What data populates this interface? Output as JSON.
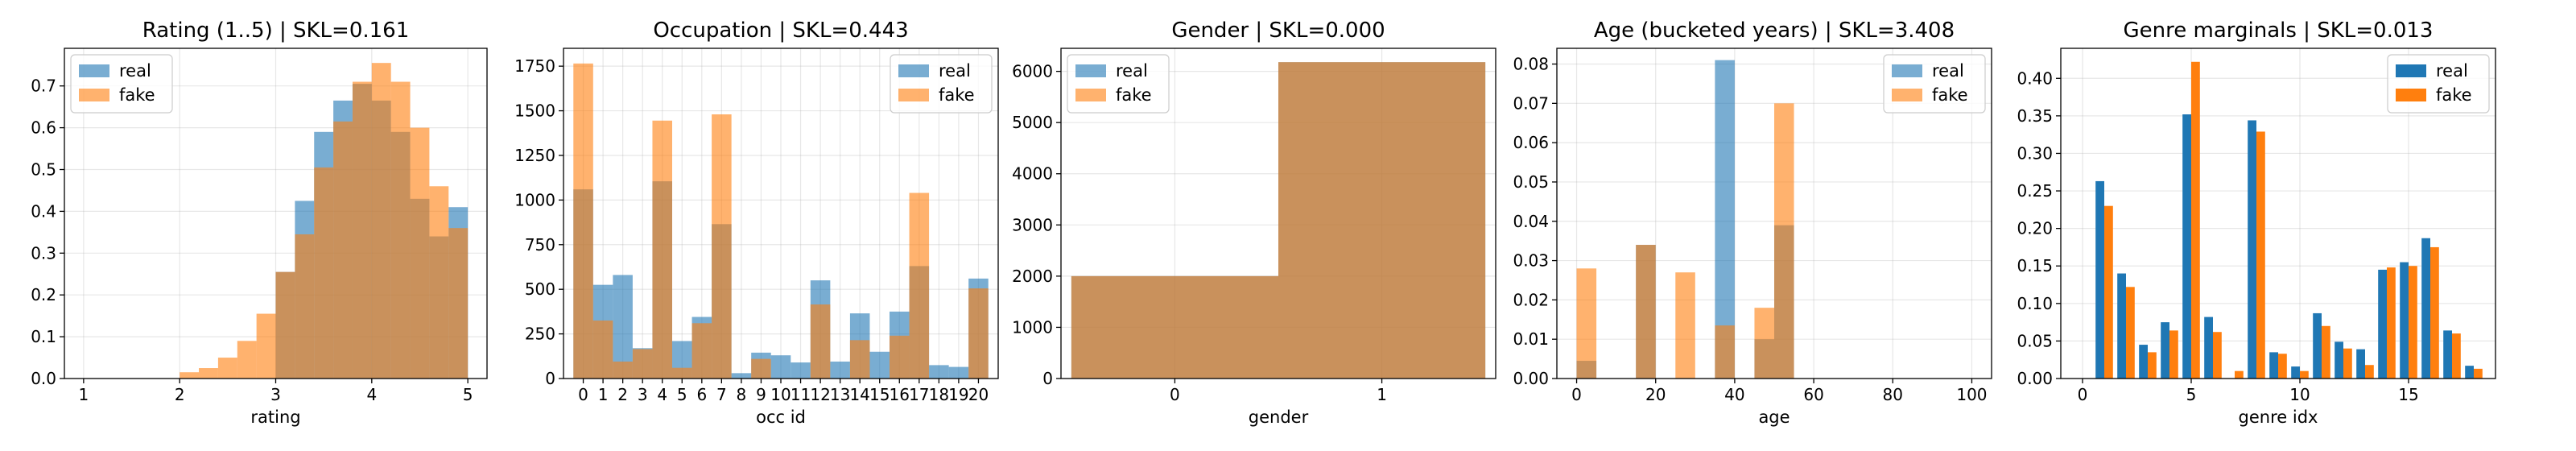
{
  "chart_data": [
    {
      "id": "rating",
      "type": "histogram",
      "title": "Rating (1..5) | SKL=0.161",
      "xlabel": "rating",
      "ylabel": "",
      "xlim": [
        0.8,
        5.2
      ],
      "ylim": [
        0,
        0.79
      ],
      "xticks": [
        1,
        2,
        3,
        4,
        5
      ],
      "yticks": [
        0.0,
        0.1,
        0.2,
        0.3,
        0.4,
        0.5,
        0.6,
        0.7
      ],
      "tick_decimals": 1,
      "grid": true,
      "legend": "upper left",
      "colors": {
        "real": "#1f77b4",
        "fake": "#ff7f0e"
      },
      "alpha": 0.6,
      "bins": [
        2.0,
        2.2,
        2.4,
        2.6,
        2.8,
        3.0,
        3.2,
        3.4,
        3.6,
        3.8,
        4.0,
        4.2,
        4.4,
        4.6,
        4.8,
        5.0
      ],
      "series": [
        {
          "name": "real",
          "values": [
            0.0,
            0.0,
            0.0,
            0.0,
            0.0,
            0.255,
            0.425,
            0.59,
            0.665,
            0.705,
            0.665,
            0.59,
            0.43,
            0.34,
            0.41
          ]
        },
        {
          "name": "fake",
          "values": [
            0.015,
            0.025,
            0.05,
            0.09,
            0.155,
            0.255,
            0.345,
            0.505,
            0.615,
            0.71,
            0.755,
            0.71,
            0.6,
            0.46,
            0.36
          ]
        }
      ]
    },
    {
      "id": "occupation",
      "type": "histogram",
      "title": "Occupation | SKL=0.443",
      "xlabel": "occ id",
      "ylabel": "",
      "xlim": [
        -1.0,
        21.0
      ],
      "ylim": [
        0,
        1850
      ],
      "xticks": [
        0,
        1,
        2,
        3,
        4,
        5,
        6,
        7,
        8,
        9,
        10,
        11,
        12,
        13,
        14,
        15,
        16,
        17,
        18,
        19,
        20
      ],
      "yticks": [
        0,
        250,
        500,
        750,
        1000,
        1250,
        1500,
        1750
      ],
      "tick_decimals": 0,
      "grid": true,
      "legend": "upper right",
      "colors": {
        "real": "#1f77b4",
        "fake": "#ff7f0e"
      },
      "alpha": 0.6,
      "bins": [
        -0.5,
        0.5,
        1.5,
        2.5,
        3.5,
        4.5,
        5.5,
        6.5,
        7.5,
        8.5,
        9.5,
        10.5,
        11.5,
        12.5,
        13.5,
        14.5,
        15.5,
        16.5,
        17.5,
        18.5,
        19.5,
        20.5
      ],
      "series": [
        {
          "name": "real",
          "values": [
            1060,
            525,
            580,
            170,
            1105,
            210,
            345,
            865,
            30,
            145,
            130,
            90,
            550,
            95,
            365,
            150,
            375,
            630,
            75,
            65,
            560
          ]
        },
        {
          "name": "fake",
          "values": [
            1765,
            325,
            95,
            165,
            1445,
            60,
            310,
            1480,
            0,
            110,
            0,
            0,
            415,
            0,
            215,
            0,
            240,
            1040,
            0,
            0,
            505
          ]
        }
      ]
    },
    {
      "id": "gender",
      "type": "histogram",
      "title": "Gender | SKL=0.000",
      "xlabel": "gender",
      "ylabel": "",
      "xlim": [
        -0.55,
        1.55
      ],
      "ylim": [
        0,
        6450
      ],
      "xticks": [
        0,
        1
      ],
      "yticks": [
        0,
        1000,
        2000,
        3000,
        4000,
        5000,
        6000
      ],
      "tick_decimals": 0,
      "grid": true,
      "legend": "upper left",
      "colors": {
        "real": "#1f77b4",
        "fake": "#ff7f0e"
      },
      "alpha": 0.6,
      "bins": [
        -0.5,
        0.5,
        1.5
      ],
      "series": [
        {
          "name": "real",
          "values": [
            2000,
            6180
          ]
        },
        {
          "name": "fake",
          "values": [
            2000,
            6180
          ]
        }
      ]
    },
    {
      "id": "age",
      "type": "histogram",
      "title": "Age (bucketed years) | SKL=3.408",
      "xlabel": "age",
      "ylabel": "",
      "xlim": [
        -5,
        105
      ],
      "ylim": [
        0,
        0.084
      ],
      "xticks": [
        0,
        20,
        40,
        60,
        80,
        100
      ],
      "yticks": [
        0.0,
        0.01,
        0.02,
        0.03,
        0.04,
        0.05,
        0.06,
        0.07,
        0.08
      ],
      "tick_decimals": 2,
      "grid": true,
      "legend": "upper right",
      "colors": {
        "real": "#1f77b4",
        "fake": "#ff7f0e"
      },
      "alpha": 0.6,
      "bins": [
        0,
        5,
        10,
        15,
        20,
        25,
        30,
        35,
        40,
        45,
        50,
        55,
        60
      ],
      "series": [
        {
          "name": "real",
          "values": [
            0.0045,
            0.0,
            0.0,
            0.034,
            0.0,
            0.0,
            0.0,
            0.081,
            0.0,
            0.01,
            0.039,
            0.0
          ]
        },
        {
          "name": "fake",
          "values": [
            0.028,
            0.0,
            0.0,
            0.034,
            0.0,
            0.027,
            0.0,
            0.0135,
            0.0,
            0.018,
            0.07,
            0.0
          ]
        }
      ]
    },
    {
      "id": "genre",
      "type": "grouped_bar",
      "title": "Genre marginals | SKL=0.013",
      "xlabel": "genre idx",
      "ylabel": "",
      "xlim": [
        -1.0,
        19.0
      ],
      "ylim": [
        0,
        0.44
      ],
      "xticks": [
        0,
        5,
        10,
        15
      ],
      "yticks": [
        0.0,
        0.05,
        0.1,
        0.15,
        0.2,
        0.25,
        0.3,
        0.35,
        0.4
      ],
      "tick_decimals": 2,
      "grid": true,
      "legend": "upper right",
      "colors": {
        "real": "#1f77b4",
        "fake": "#ff7f0e"
      },
      "alpha": 1.0,
      "x": [
        1,
        2,
        3,
        4,
        5,
        6,
        7,
        8,
        9,
        10,
        11,
        12,
        13,
        14,
        15,
        16,
        17,
        18
      ],
      "series": [
        {
          "name": "real",
          "values": [
            0.263,
            0.14,
            0.045,
            0.075,
            0.352,
            0.082,
            0.0,
            0.344,
            0.035,
            0.016,
            0.087,
            0.049,
            0.039,
            0.145,
            0.155,
            0.187,
            0.064,
            0.017
          ]
        },
        {
          "name": "fake",
          "values": [
            0.23,
            0.122,
            0.035,
            0.064,
            0.422,
            0.062,
            0.01,
            0.329,
            0.033,
            0.01,
            0.07,
            0.04,
            0.018,
            0.148,
            0.15,
            0.175,
            0.06,
            0.013
          ]
        }
      ]
    }
  ]
}
